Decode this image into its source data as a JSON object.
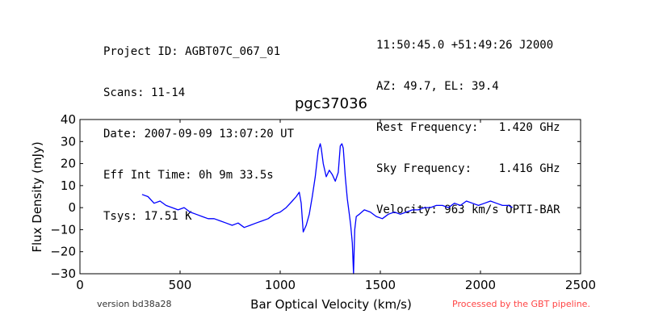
{
  "header": {
    "left_lines": [
      "Project ID: AGBT07C_067_01",
      "Scans: 11-14",
      "Date: 2007-09-09 13:07:20 UT",
      "Eff Int Time: 0h 9m 33.5s",
      "Tsys: 17.51 K"
    ],
    "right_lines": [
      "11:50:45.0 +51:49:26 J2000",
      "AZ: 49.7, EL: 39.4",
      "Rest Frequency:   1.420 GHz",
      "Sky Frequency:    1.416 GHz",
      "Velocity: 963 km/s OPTI-BAR"
    ]
  },
  "footer": {
    "version": "version bd38a28",
    "pipeline": "Processed by the GBT pipeline."
  },
  "colors": {
    "series": "#0000ff",
    "pipeline_note": "#ff4444",
    "axes": "#000000"
  },
  "chart_data": {
    "type": "line",
    "title": "pgc37036",
    "xlabel": "Bar Optical Velocity (km/s)",
    "ylabel": "Flux Density (mJy)",
    "xlim": [
      0,
      2500
    ],
    "ylim": [
      -30,
      40
    ],
    "xticks": [
      0,
      500,
      1000,
      1500,
      2000,
      2500
    ],
    "yticks": [
      -30,
      -20,
      -10,
      0,
      10,
      20,
      30,
      40
    ],
    "grid": false,
    "series": [
      {
        "x": [
          310,
          340,
          370,
          400,
          430,
          460,
          490,
          520,
          550,
          580,
          610,
          640,
          670,
          700,
          730,
          760,
          790,
          820,
          850,
          880,
          910,
          940,
          970,
          1000,
          1030,
          1060,
          1080,
          1095,
          1105,
          1115,
          1130,
          1145,
          1160,
          1175,
          1190,
          1200,
          1205,
          1215,
          1230,
          1245,
          1260,
          1275,
          1290,
          1300,
          1308,
          1315,
          1325,
          1335,
          1345,
          1352,
          1360,
          1366,
          1372,
          1380,
          1395,
          1420,
          1450,
          1480,
          1510,
          1540,
          1570,
          1600,
          1630,
          1660,
          1690,
          1720,
          1750,
          1780,
          1810,
          1840,
          1870,
          1900,
          1930,
          1960,
          1990,
          2020,
          2050,
          2080,
          2110,
          2140,
          2160
        ],
        "values": [
          6,
          5,
          2,
          3,
          1,
          0,
          -1,
          0,
          -2,
          -3,
          -4,
          -5,
          -5,
          -6,
          -7,
          -8,
          -7,
          -9,
          -8,
          -7,
          -6,
          -5,
          -3,
          -2,
          0,
          3,
          5,
          7,
          2,
          -11,
          -8,
          -3,
          5,
          14,
          26,
          29,
          27,
          20,
          14,
          17,
          15,
          12,
          16,
          28,
          29,
          27,
          14,
          4,
          -3,
          -8,
          -16,
          -30,
          -10,
          -4,
          -3,
          -1,
          -2,
          -4,
          -5,
          -3,
          -2,
          -3,
          -2,
          -1,
          -1,
          0,
          0,
          1,
          1,
          0,
          2,
          1,
          3,
          2,
          1,
          2,
          3,
          2,
          1,
          1,
          0
        ]
      }
    ]
  }
}
